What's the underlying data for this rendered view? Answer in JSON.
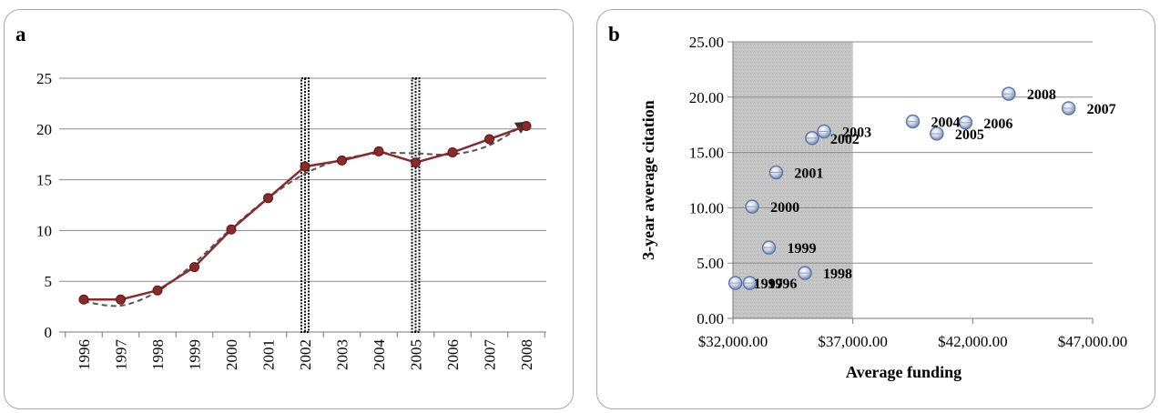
{
  "chart_data": [
    {
      "panel_label": "a",
      "type": "line",
      "categories": [
        "1996",
        "1997",
        "1998",
        "1999",
        "2000",
        "2001",
        "2002",
        "2003",
        "2004",
        "2005",
        "2006",
        "2007",
        "2008"
      ],
      "series": [
        {
          "values": [
            3.2,
            3.2,
            4.1,
            6.4,
            10.1,
            13.2,
            16.3,
            16.9,
            17.8,
            16.7,
            17.7,
            19.0,
            20.3
          ],
          "color": "#8b2a2a",
          "marker": "circle"
        },
        {
          "values": [
            3.0,
            2.6,
            4.0,
            6.8,
            10.2,
            13.2,
            15.6,
            17.0,
            17.6,
            17.6,
            17.5,
            18.4,
            20.6
          ],
          "color": "#555555",
          "style": "dashed",
          "end_arrow": true
        }
      ],
      "yticks": [
        "0",
        "5",
        "10",
        "15",
        "20",
        "25"
      ],
      "ylim": [
        0,
        25
      ],
      "grid": "horizontal",
      "markers_vertical_dotted": [
        "2002",
        "2005"
      ]
    },
    {
      "panel_label": "b",
      "type": "scatter",
      "xlabel": "Average funding",
      "ylabel": "3-year average citation",
      "xlim": [
        32000,
        47000
      ],
      "ylim": [
        0,
        25
      ],
      "xticks": [
        32000,
        37000,
        42000,
        47000
      ],
      "xtick_labels": [
        "$32,000.00",
        "$37,000.00",
        "$42,000.00",
        "$47,000.00"
      ],
      "yticks": [
        0,
        5,
        10,
        15,
        20,
        25
      ],
      "ytick_labels": [
        "0.00",
        "5.00",
        "10.00",
        "15.00",
        "20.00",
        "25.00"
      ],
      "grid": "horizontal",
      "shaded_x_range": [
        32000,
        37000
      ],
      "points": [
        {
          "label": "1996",
          "x": 32700,
          "y": 3.2
        },
        {
          "label": "1997",
          "x": 32100,
          "y": 3.2
        },
        {
          "label": "1998",
          "x": 35000,
          "y": 4.1
        },
        {
          "label": "1999",
          "x": 33500,
          "y": 6.4
        },
        {
          "label": "2000",
          "x": 32800,
          "y": 10.1
        },
        {
          "label": "2001",
          "x": 33800,
          "y": 13.2
        },
        {
          "label": "2002",
          "x": 35300,
          "y": 16.3
        },
        {
          "label": "2003",
          "x": 35800,
          "y": 16.9
        },
        {
          "label": "2004",
          "x": 39500,
          "y": 17.8
        },
        {
          "label": "2005",
          "x": 40500,
          "y": 16.7
        },
        {
          "label": "2006",
          "x": 41700,
          "y": 17.7
        },
        {
          "label": "2007",
          "x": 46000,
          "y": 19.0
        },
        {
          "label": "2008",
          "x": 43500,
          "y": 20.3
        }
      ]
    }
  ]
}
